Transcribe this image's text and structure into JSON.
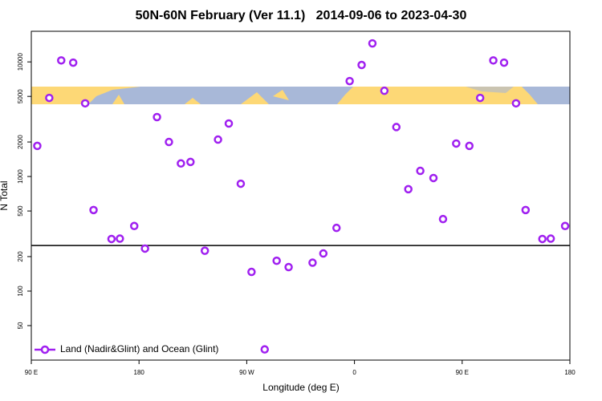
{
  "chart_data": {
    "type": "scatter",
    "title": "50N-60N February (Ver 11.1)   2014-09-06 to 2023-04-30",
    "x_label": "Longitude (deg E)",
    "y_label": "N Total",
    "log_y": true,
    "legend": "lower left",
    "hline": 250,
    "xlim": [
      -270,
      180
    ],
    "xticks": [
      {
        "value": -270,
        "label": "90 E"
      },
      {
        "value": -180,
        "label": "180"
      },
      {
        "value": -90,
        "label": "90 W"
      },
      0,
      {
        "value": 90,
        "label": "90 E"
      },
      180
    ],
    "ylim": [
      25,
      18500
    ],
    "yticks": [
      50,
      100,
      200,
      500,
      1000,
      2000,
      5000,
      10000
    ],
    "series": [
      {
        "name": "Land (Nadir&Glint) and Ocean (Glint)",
        "color": "#a020f0",
        "x": [
          -265,
          -255,
          -245,
          -235,
          -225,
          -218,
          -203,
          -196,
          -184,
          -175,
          -165,
          -155,
          -145,
          -137,
          -125,
          -114,
          -105,
          -95,
          -86,
          -75,
          -65,
          -55,
          -35,
          -26,
          -15,
          -4,
          6,
          15,
          25,
          35,
          45,
          55,
          66,
          74,
          85,
          96,
          105,
          116,
          125,
          135,
          143,
          157,
          164,
          176
        ],
        "values": [
          1850,
          4850,
          10300,
          9850,
          4350,
          510,
          285,
          287,
          370,
          235,
          3300,
          2000,
          1300,
          1340,
          225,
          2100,
          2900,
          865,
          147,
          31,
          184,
          162,
          177,
          213,
          356,
          6800,
          9400,
          14500,
          5600,
          2700,
          775,
          1120,
          970,
          425,
          1940,
          1850,
          4850,
          10300,
          9850,
          4350,
          510,
          285,
          287,
          370
        ]
      }
    ]
  }
}
